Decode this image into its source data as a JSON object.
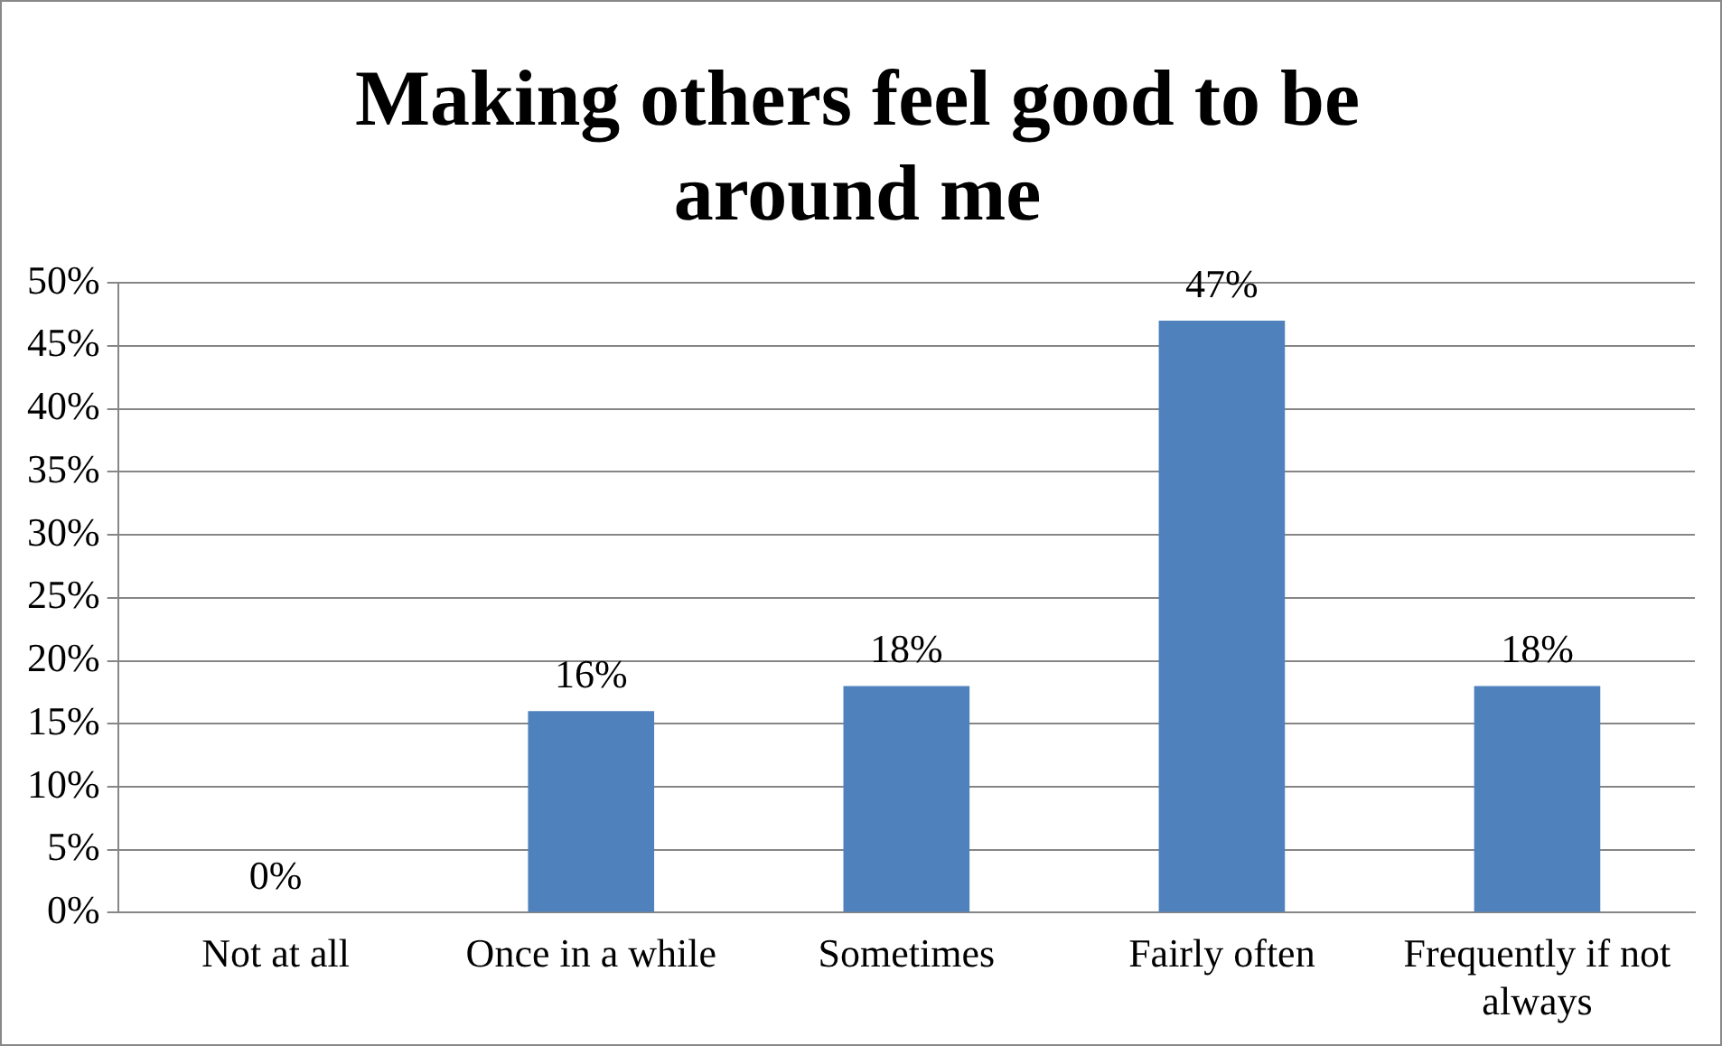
{
  "chart_data": {
    "type": "bar",
    "title": "Making others feel good to be around me",
    "categories": [
      "Not at all",
      "Once in a while",
      "Sometimes",
      "Fairly often",
      "Frequently if not always"
    ],
    "values": [
      0,
      16,
      18,
      47,
      18
    ],
    "color": "#4f81bd",
    "ylim": [
      0,
      50
    ],
    "yticks": [
      {
        "value": 0,
        "label": "0%"
      },
      {
        "value": 5,
        "label": "5%"
      },
      {
        "value": 10,
        "label": "10%"
      },
      {
        "value": 15,
        "label": "15%"
      },
      {
        "value": 20,
        "label": "20%"
      },
      {
        "value": 25,
        "label": "25%"
      },
      {
        "value": 30,
        "label": "30%"
      },
      {
        "value": 35,
        "label": "35%"
      },
      {
        "value": 40,
        "label": "40%"
      },
      {
        "value": 45,
        "label": "45%"
      },
      {
        "value": 50,
        "label": "50%"
      }
    ],
    "value_labels": [
      "0%",
      "16%",
      "18%",
      "47%",
      "18%"
    ],
    "grid": "y",
    "legend": false
  }
}
